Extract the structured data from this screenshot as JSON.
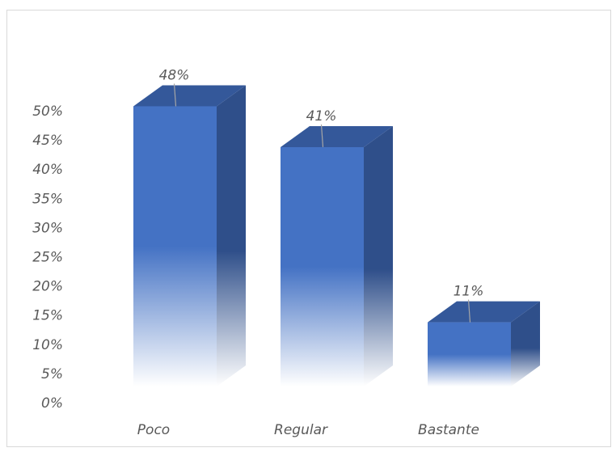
{
  "chart_data": {
    "type": "bar",
    "style": "3d",
    "categories": [
      "Poco",
      "Regular",
      "Bastante"
    ],
    "values": [
      48,
      41,
      11
    ],
    "data_labels": [
      "48%",
      "41%",
      "11%"
    ],
    "y_ticks": [
      "0%",
      "5%",
      "10%",
      "15%",
      "20%",
      "25%",
      "30%",
      "35%",
      "40%",
      "45%",
      "50%"
    ],
    "ylim": [
      0,
      50
    ],
    "grid": false,
    "colors": {
      "bar_front": "#4472c4",
      "bar_side": "#2f4f8a",
      "bar_top": "#34589a"
    }
  }
}
